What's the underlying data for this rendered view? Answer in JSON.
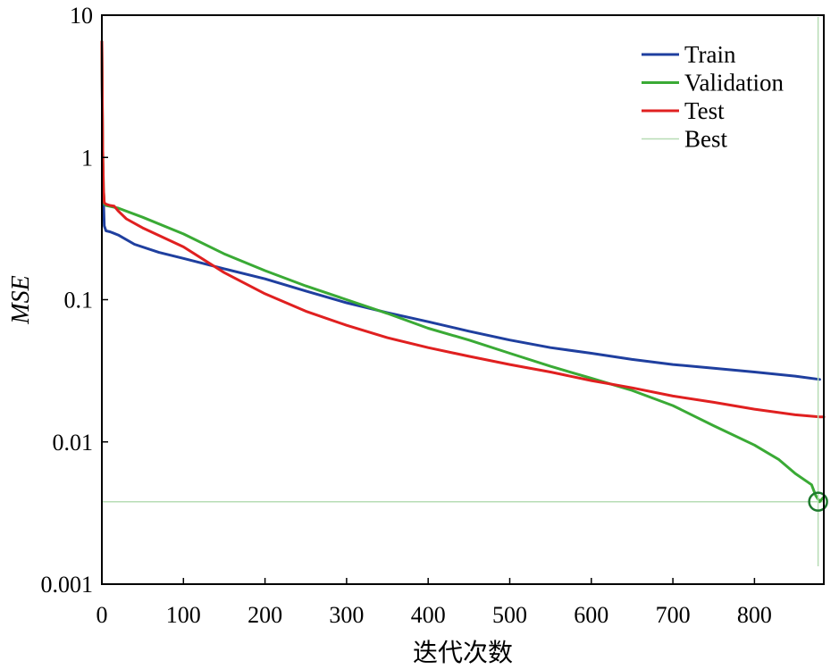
{
  "chart_data": {
    "type": "line",
    "title": "",
    "xlabel": "迭代次数",
    "ylabel": "MSE",
    "xlim": [
      0,
      885
    ],
    "ylim": [
      0.001,
      10
    ],
    "yscale": "log",
    "grid": false,
    "legend_position": "top-right",
    "x_ticks": [
      0,
      100,
      200,
      300,
      400,
      500,
      600,
      700,
      800
    ],
    "x_tick_labels": [
      "0",
      "100",
      "200",
      "300",
      "400",
      "500",
      "600",
      "700",
      "800"
    ],
    "y_ticks": [
      0.001,
      0.01,
      0.1,
      1,
      10
    ],
    "y_tick_labels": [
      "0.001",
      "0.01",
      "0.1",
      "1",
      "10"
    ],
    "series": [
      {
        "name": "Train",
        "color": "#1f3f9f",
        "x": [
          0,
          1,
          2,
          3,
          5,
          10,
          20,
          40,
          70,
          100,
          150,
          200,
          250,
          300,
          350,
          400,
          450,
          500,
          550,
          600,
          650,
          700,
          750,
          800,
          850,
          880
        ],
        "y": [
          6.5,
          1.0,
          0.5,
          0.33,
          0.305,
          0.3,
          0.285,
          0.245,
          0.215,
          0.195,
          0.165,
          0.14,
          0.115,
          0.095,
          0.081,
          0.07,
          0.06,
          0.052,
          0.046,
          0.042,
          0.038,
          0.035,
          0.033,
          0.031,
          0.029,
          0.0275
        ]
      },
      {
        "name": "Validation",
        "color": "#3aaa35",
        "x": [
          0,
          1,
          2,
          3,
          5,
          20,
          50,
          100,
          150,
          200,
          250,
          300,
          350,
          400,
          450,
          500,
          550,
          600,
          650,
          700,
          750,
          800,
          830,
          850,
          870,
          875,
          880,
          885
        ],
        "y": [
          6.5,
          1.2,
          0.6,
          0.47,
          0.46,
          0.44,
          0.38,
          0.29,
          0.21,
          0.16,
          0.125,
          0.1,
          0.08,
          0.063,
          0.052,
          0.042,
          0.034,
          0.028,
          0.023,
          0.018,
          0.013,
          0.0095,
          0.0075,
          0.006,
          0.005,
          0.0042,
          0.0038,
          0.0041
        ]
      },
      {
        "name": "Test",
        "color": "#e02020",
        "x": [
          0,
          1,
          2,
          3,
          5,
          10,
          15,
          20,
          30,
          50,
          100,
          150,
          200,
          250,
          300,
          350,
          400,
          450,
          500,
          550,
          600,
          650,
          700,
          750,
          800,
          850,
          880,
          885
        ],
        "y": [
          6.5,
          1.2,
          0.6,
          0.48,
          0.47,
          0.46,
          0.455,
          0.42,
          0.37,
          0.32,
          0.235,
          0.155,
          0.11,
          0.083,
          0.066,
          0.054,
          0.046,
          0.04,
          0.035,
          0.031,
          0.027,
          0.024,
          0.021,
          0.019,
          0.017,
          0.0155,
          0.015,
          0.015
        ]
      },
      {
        "name": "Best",
        "color": "#b7dcb5",
        "x": [
          0,
          885
        ],
        "y": [
          0.0038,
          0.0038
        ]
      }
    ],
    "best_point": {
      "x": 878,
      "y": 0.0038,
      "color": "#1e7a2e"
    },
    "best_epoch_line": {
      "x": 878,
      "color": "#b7dcb5"
    }
  }
}
